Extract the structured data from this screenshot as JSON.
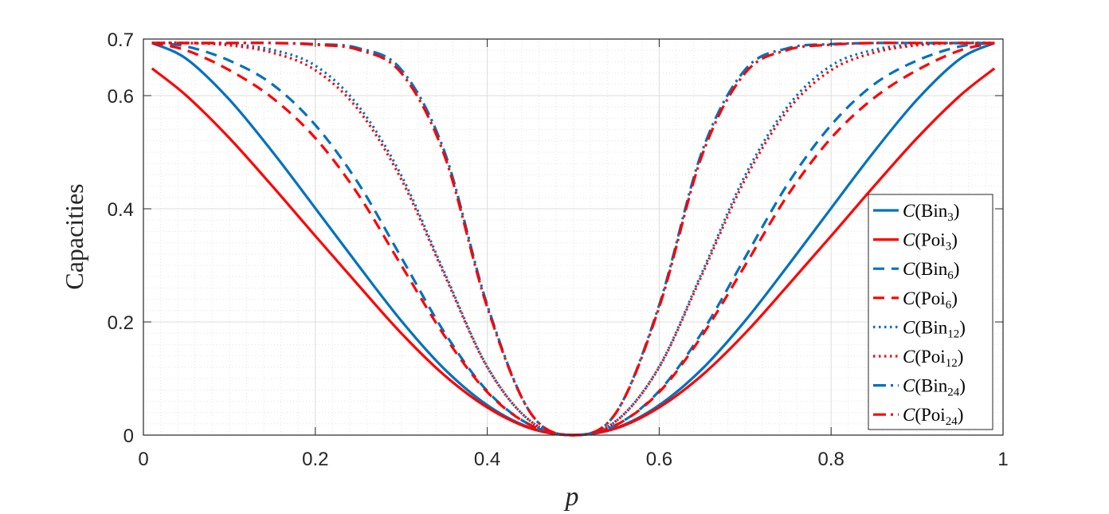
{
  "chart_data": {
    "type": "line",
    "title": "",
    "xlabel": "p",
    "ylabel": "Capacities",
    "xlim": [
      0,
      1
    ],
    "ylim": [
      0,
      0.7
    ],
    "xticks": [
      0,
      0.2,
      0.4,
      0.6,
      0.8,
      1
    ],
    "xtick_labels": [
      "0",
      "0.2",
      "0.4",
      "0.6",
      "0.8",
      "1"
    ],
    "yticks": [
      0,
      0.2,
      0.4,
      0.6,
      0.7
    ],
    "ytick_labels": [
      "0",
      "0.2",
      "0.4",
      "0.6",
      "0.7"
    ],
    "grid": true,
    "minor_grid": true,
    "legend_position": "right",
    "x": [
      0.01,
      0.05,
      0.1,
      0.15,
      0.2,
      0.25,
      0.3,
      0.35,
      0.4,
      0.45,
      0.5,
      0.55,
      0.6,
      0.65,
      0.7,
      0.75,
      0.8,
      0.85,
      0.9,
      0.95,
      0.99
    ],
    "series": [
      {
        "name": "C(Bin3)",
        "label": {
          "prefix": "C",
          "base": "Bin",
          "sub": "3"
        },
        "color": "#0072BD",
        "dash": "solid",
        "values": [
          0.693,
          0.665,
          0.593,
          0.501,
          0.401,
          0.3,
          0.202,
          0.117,
          0.053,
          0.013,
          0,
          0.013,
          0.053,
          0.117,
          0.202,
          0.3,
          0.401,
          0.501,
          0.593,
          0.665,
          0.693
        ]
      },
      {
        "name": "C(Poi3)",
        "label": {
          "prefix": "C",
          "base": "Poi",
          "sub": "3"
        },
        "color": "#FF0000",
        "dash": "solid",
        "values": [
          0.648,
          0.6,
          0.525,
          0.44,
          0.352,
          0.265,
          0.18,
          0.106,
          0.049,
          0.012,
          0,
          0.012,
          0.049,
          0.106,
          0.18,
          0.265,
          0.352,
          0.44,
          0.525,
          0.6,
          0.648
        ]
      },
      {
        "name": "C(Bin6)",
        "label": {
          "prefix": "C",
          "base": "Bin",
          "sub": "6"
        },
        "color": "#0072BD",
        "dash": "dashed",
        "values": [
          0.693,
          0.687,
          0.662,
          0.62,
          0.548,
          0.445,
          0.314,
          0.182,
          0.078,
          0.018,
          0,
          0.018,
          0.078,
          0.182,
          0.314,
          0.445,
          0.548,
          0.62,
          0.662,
          0.687,
          0.693
        ]
      },
      {
        "name": "C(Poi6)",
        "label": {
          "prefix": "C",
          "base": "Poi",
          "sub": "6"
        },
        "color": "#FF0000",
        "dash": "dashed",
        "values": [
          0.693,
          0.68,
          0.645,
          0.596,
          0.525,
          0.425,
          0.3,
          0.176,
          0.076,
          0.018,
          0,
          0.018,
          0.076,
          0.176,
          0.3,
          0.425,
          0.525,
          0.596,
          0.645,
          0.68,
          0.693
        ]
      },
      {
        "name": "C(Bin12)",
        "label": {
          "prefix": "C",
          "base": "Bin",
          "sub": "12"
        },
        "color": "#0072BD",
        "dash": "dotted",
        "values": [
          0.693,
          0.693,
          0.691,
          0.681,
          0.653,
          0.582,
          0.459,
          0.288,
          0.121,
          0.025,
          0,
          0.025,
          0.121,
          0.288,
          0.459,
          0.582,
          0.653,
          0.681,
          0.691,
          0.693,
          0.693
        ]
      },
      {
        "name": "C(Poi12)",
        "label": {
          "prefix": "C",
          "base": "Poi",
          "sub": "12"
        },
        "color": "#FF0000",
        "dash": "dotted",
        "values": [
          0.693,
          0.693,
          0.689,
          0.676,
          0.645,
          0.575,
          0.452,
          0.284,
          0.12,
          0.025,
          0,
          0.025,
          0.12,
          0.284,
          0.452,
          0.575,
          0.645,
          0.676,
          0.689,
          0.693,
          0.693
        ]
      },
      {
        "name": "C(Bin24)",
        "label": {
          "prefix": "C",
          "base": "Bin",
          "sub": "24"
        },
        "color": "#0072BD",
        "dash": "dashdot",
        "values": [
          0.693,
          0.693,
          0.693,
          0.693,
          0.691,
          0.684,
          0.646,
          0.502,
          0.23,
          0.04,
          0,
          0.04,
          0.23,
          0.502,
          0.646,
          0.684,
          0.691,
          0.693,
          0.693,
          0.693,
          0.693
        ]
      },
      {
        "name": "C(Poi24)",
        "label": {
          "prefix": "C",
          "base": "Poi",
          "sub": "24"
        },
        "color": "#FF0000",
        "dash": "dashdot",
        "values": [
          0.693,
          0.693,
          0.693,
          0.693,
          0.69,
          0.681,
          0.64,
          0.495,
          0.226,
          0.04,
          0,
          0.04,
          0.226,
          0.495,
          0.64,
          0.681,
          0.69,
          0.693,
          0.693,
          0.693,
          0.693
        ]
      }
    ]
  }
}
